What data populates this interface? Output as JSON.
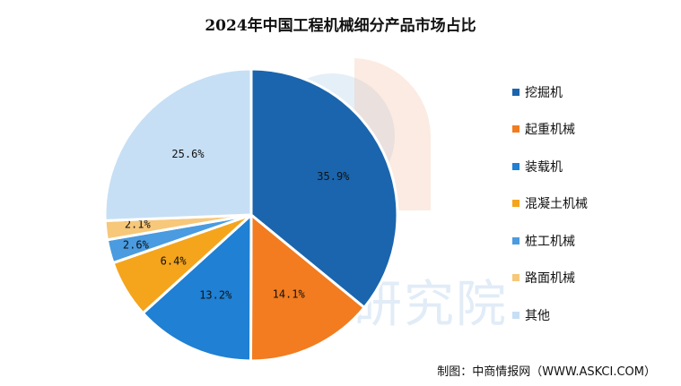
{
  "chart_data": {
    "type": "pie",
    "title": "2024年中国工程机械细分产品市场占比",
    "categories": [
      "挖掘机",
      "起重机械",
      "装载机",
      "混凝土机械",
      "桩工机械",
      "路面机械",
      "其他"
    ],
    "values": [
      35.9,
      14.1,
      13.2,
      6.4,
      2.6,
      2.1,
      25.6
    ],
    "labels": [
      "35.9%",
      "14.1%",
      "13.2%",
      "6.4%",
      "2.6%",
      "2.1%",
      "25.6%"
    ],
    "colors": [
      "#1a65ad",
      "#f27c1f",
      "#1f80d4",
      "#f4a51c",
      "#4a9be0",
      "#f7c77a",
      "#c6dff5"
    ],
    "legend_position": "right",
    "start_angle": "top, clockwise"
  },
  "watermark": "中商产业研究院",
  "source": "制图：中商情报网（WWW.ASKCI.COM）"
}
